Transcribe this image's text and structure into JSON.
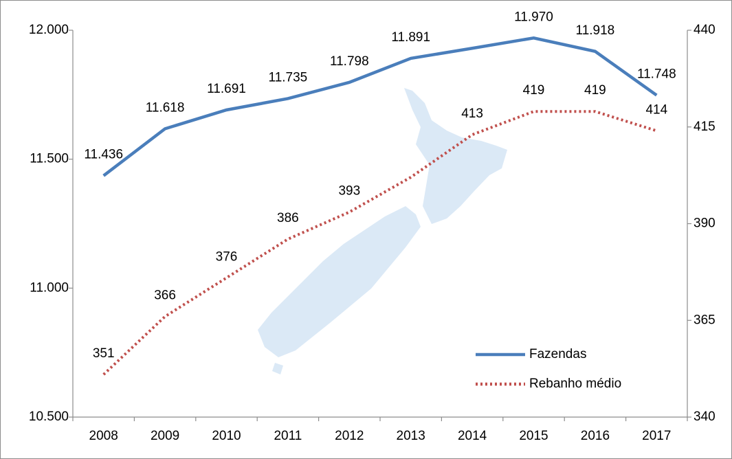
{
  "chart_data": {
    "type": "line",
    "categories": [
      "2008",
      "2009",
      "2010",
      "2011",
      "2012",
      "2013",
      "2014",
      "2015",
      "2016",
      "2017"
    ],
    "series": [
      {
        "name": "Fazendas",
        "color": "#4a7ebb",
        "dash": "solid",
        "values": [
          11436,
          11618,
          11691,
          11735,
          11798,
          11891,
          11930,
          11970,
          11918,
          11748
        ],
        "value_labels": [
          "11.436",
          "11.618",
          "11.691",
          "11.735",
          "11.798",
          "11.891",
          null,
          "11.970",
          "11.918",
          "11.748"
        ]
      },
      {
        "name": "Rebanho médio",
        "color": "#c0504d",
        "dash": "dotted",
        "axis": "y2",
        "values": [
          351,
          366,
          376,
          386,
          393,
          402,
          413,
          419,
          419,
          414
        ],
        "value_labels": [
          "351",
          "366",
          "376",
          "386",
          "393",
          null,
          "413",
          "419",
          "419",
          "414"
        ]
      }
    ],
    "ylim": [
      10500,
      12000
    ],
    "yticks": [
      {
        "value": 10500,
        "label": "10.500"
      },
      {
        "value": 11000,
        "label": "11.000"
      },
      {
        "value": 11500,
        "label": "11.500"
      },
      {
        "value": 12000,
        "label": "12.000"
      }
    ],
    "y2lim": [
      340,
      440
    ],
    "y2ticks": [
      340,
      365,
      390,
      415,
      440
    ],
    "legend": "lower right"
  }
}
